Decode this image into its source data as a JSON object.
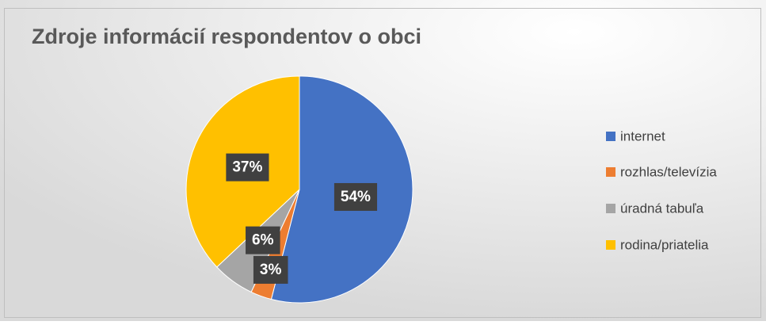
{
  "chart_data": {
    "type": "pie",
    "title": "Zdroje informácií respondentov o obci",
    "categories": [
      "internet",
      "rozhlas/televízia",
      "úradná tabuľa",
      "rodina/priatelia"
    ],
    "values": [
      54,
      3,
      6,
      37
    ],
    "value_labels": [
      "54%",
      "3%",
      "6%",
      "37%"
    ],
    "colors": [
      "#4472c4",
      "#ed7d31",
      "#a5a5a5",
      "#ffc000"
    ],
    "legend": "right"
  }
}
